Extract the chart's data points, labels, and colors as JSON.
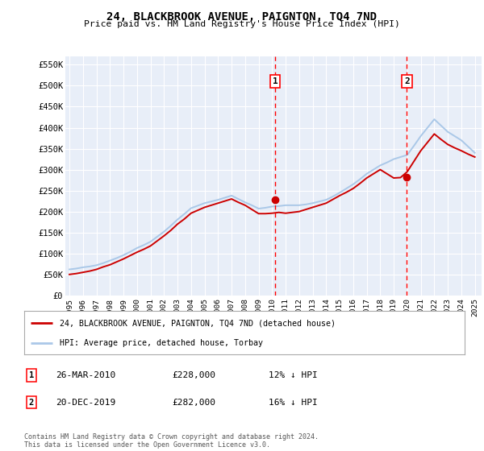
{
  "title": "24, BLACKBROOK AVENUE, PAIGNTON, TQ4 7ND",
  "subtitle": "Price paid vs. HM Land Registry's House Price Index (HPI)",
  "ylim": [
    0,
    570000
  ],
  "yticks": [
    0,
    50000,
    100000,
    150000,
    200000,
    250000,
    300000,
    350000,
    400000,
    450000,
    500000,
    550000
  ],
  "ytick_labels": [
    "£0",
    "£50K",
    "£100K",
    "£150K",
    "£200K",
    "£250K",
    "£300K",
    "£350K",
    "£400K",
    "£450K",
    "£500K",
    "£550K"
  ],
  "background_color": "#e8eef8",
  "grid_color": "#ffffff",
  "sale1_x": 2010.23,
  "sale1_y": 228000,
  "sale1_label": "1",
  "sale1_date": "26-MAR-2010",
  "sale1_price": "£228,000",
  "sale1_hpi": "12% ↓ HPI",
  "sale2_x": 2019.97,
  "sale2_y": 282000,
  "sale2_label": "2",
  "sale2_date": "20-DEC-2019",
  "sale2_price": "£282,000",
  "sale2_hpi": "16% ↓ HPI",
  "legend_line1": "24, BLACKBROOK AVENUE, PAIGNTON, TQ4 7ND (detached house)",
  "legend_line2": "HPI: Average price, detached house, Torbay",
  "footer": "Contains HM Land Registry data © Crown copyright and database right 2024.\nThis data is licensed under the Open Government Licence v3.0.",
  "hpi_color": "#aac8e8",
  "sale_color": "#cc0000",
  "hpi_years": [
    1995,
    1995.5,
    1996,
    1996.5,
    1997,
    1997.5,
    1998,
    1998.5,
    1999,
    1999.5,
    2000,
    2000.5,
    2001,
    2001.5,
    2002,
    2002.5,
    2003,
    2003.5,
    2004,
    2004.5,
    2005,
    2005.5,
    2006,
    2006.5,
    2007,
    2007.5,
    2008,
    2008.5,
    2009,
    2009.5,
    2010,
    2010.5,
    2011,
    2011.5,
    2012,
    2012.5,
    2013,
    2013.5,
    2014,
    2014.5,
    2015,
    2015.5,
    2016,
    2016.5,
    2017,
    2017.5,
    2018,
    2018.5,
    2019,
    2019.5,
    2020,
    2020.5,
    2021,
    2021.5,
    2022,
    2022.5,
    2023,
    2023.5,
    2024,
    2024.5,
    2025
  ],
  "hpi_values": [
    62000,
    64000,
    67000,
    69000,
    72000,
    77000,
    83000,
    89000,
    96000,
    104000,
    113000,
    120000,
    128000,
    140000,
    152000,
    166000,
    181000,
    194000,
    208000,
    214000,
    220000,
    224000,
    228000,
    233000,
    238000,
    230000,
    222000,
    215000,
    207000,
    209000,
    212000,
    213000,
    215000,
    215000,
    215000,
    217000,
    220000,
    224000,
    228000,
    236000,
    245000,
    255000,
    265000,
    277000,
    290000,
    300000,
    310000,
    317000,
    325000,
    330000,
    335000,
    357000,
    380000,
    400000,
    420000,
    405000,
    390000,
    380000,
    370000,
    355000,
    340000
  ],
  "sale_years": [
    1995,
    1995.5,
    1996,
    1996.5,
    1997,
    1997.5,
    1998,
    1998.5,
    1999,
    1999.5,
    2000,
    2000.5,
    2001,
    2001.5,
    2002,
    2002.5,
    2003,
    2003.5,
    2004,
    2004.5,
    2005,
    2005.5,
    2006,
    2006.5,
    2007,
    2007.5,
    2008,
    2008.5,
    2009,
    2009.5,
    2010,
    2010.5,
    2011,
    2011.5,
    2012,
    2012.5,
    2013,
    2013.5,
    2014,
    2014.5,
    2015,
    2015.5,
    2016,
    2016.5,
    2017,
    2017.5,
    2018,
    2018.5,
    2019,
    2019.5,
    2020,
    2020.5,
    2021,
    2021.5,
    2022,
    2022.5,
    2023,
    2023.5,
    2024,
    2024.5,
    2025
  ],
  "sale_values": [
    50000,
    52000,
    55000,
    58000,
    62000,
    68000,
    73000,
    80000,
    87000,
    95000,
    103000,
    110000,
    118000,
    130000,
    142000,
    155000,
    170000,
    182000,
    196000,
    203000,
    210000,
    215000,
    220000,
    225000,
    230000,
    222000,
    215000,
    205000,
    195000,
    195000,
    196000,
    198000,
    196000,
    198000,
    200000,
    205000,
    210000,
    215000,
    220000,
    229000,
    238000,
    246000,
    255000,
    267000,
    280000,
    290000,
    300000,
    290000,
    280000,
    281000,
    295000,
    320000,
    345000,
    365000,
    385000,
    372000,
    360000,
    352000,
    345000,
    337000,
    330000
  ],
  "xlim": [
    1994.7,
    2025.5
  ]
}
